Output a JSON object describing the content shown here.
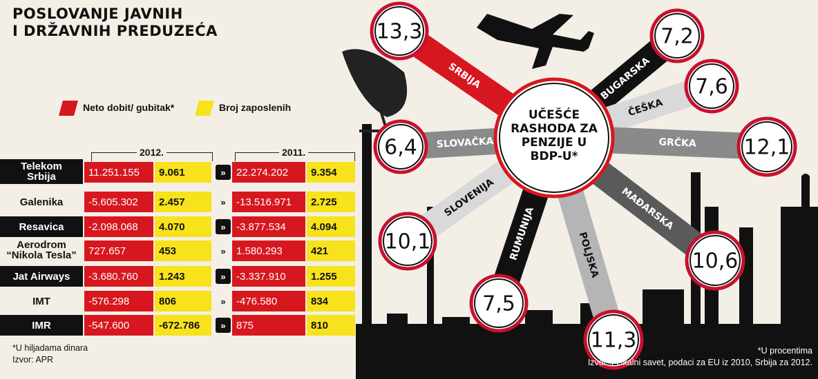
{
  "title_line1": "POSLOVANJE JAVNIH",
  "title_line2": "I DRŽAVNIH PREDUZEĆA",
  "legend": {
    "red_label": "Neto dobit/ gubitak*",
    "yellow_label": "Broj zaposlenih",
    "red_color": "#d7171f",
    "yellow_color": "#f7e21c"
  },
  "years": {
    "y2012": "2012.",
    "y2011": "2011."
  },
  "chevron": "»",
  "rows": [
    {
      "name1": "Telekom",
      "name2": "Srbija",
      "v2012": "11.251.155",
      "e2012": "9.061",
      "v2011": "22.274.202",
      "e2011": "9.354"
    },
    {
      "name1": "Galenika",
      "name2": "",
      "v2012": "-5.605.302",
      "e2012": "2.457",
      "v2011": "-13.516.971",
      "e2011": "2.725"
    },
    {
      "name1": "Resavica",
      "name2": "",
      "v2012": "-2.098.068",
      "e2012": "4.070",
      "v2011": "-3.877.534",
      "e2011": "4.094"
    },
    {
      "name1": "Aerodrom",
      "name2": "“Nikola Tesla”",
      "v2012": "727.657",
      "e2012": "453",
      "v2011": "1.580.293",
      "e2011": "421"
    },
    {
      "name1": "Jat Airways",
      "name2": "",
      "v2012": "-3.680.760",
      "e2012": "1.243",
      "v2011": "-3.337.910",
      "e2011": "1.255"
    },
    {
      "name1": "IMT",
      "name2": "",
      "v2012": "-576.298",
      "e2012": "806",
      "v2011": "-476.580",
      "e2011": "834"
    },
    {
      "name1": "IMR",
      "name2": "",
      "v2012": "-547.600",
      "e2012": "-672.786",
      "v2011": "875",
      "e2011": "810"
    }
  ],
  "left_foot1": "*U hiljadama dinara",
  "left_foot2": "Izvor: APR",
  "center": {
    "l1": "UČEŠĆE",
    "l2": "RASHODA ZA",
    "l3": "PENZIJE U",
    "l4": "BDP-U*"
  },
  "countries": [
    {
      "name": "SRBIJA",
      "value": "13,3",
      "color": "#d7171f"
    },
    {
      "name": "BUGARSKA",
      "value": "7,2",
      "color": "#111111"
    },
    {
      "name": "ČEŠKA",
      "value": "7,6",
      "color": "#d9d9d9"
    },
    {
      "name": "GRČKA",
      "value": "12,1",
      "color": "#8a8a8a"
    },
    {
      "name": "MAĐARSKA",
      "value": "10,6",
      "color": "#5a5a5a"
    },
    {
      "name": "POLJSKA",
      "value": "11,3",
      "color": "#b5b5b5"
    },
    {
      "name": "RUMUNIJA",
      "value": "7,5",
      "color": "#111111"
    },
    {
      "name": "SLOVENIJA",
      "value": "10,1",
      "color": "#d9d9d9"
    },
    {
      "name": "SLOVAČKA",
      "value": "6,4",
      "color": "#8a8a8a"
    }
  ],
  "right_foot1": "*U procentima",
  "right_foot2": "Izvor: Fiskalni savet, podaci za EU iz 2010, Srbija za 2012."
}
